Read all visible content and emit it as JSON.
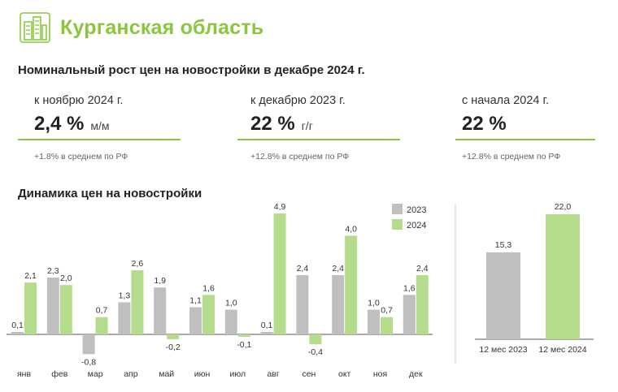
{
  "header": {
    "region": "Курганская область",
    "logo_icon": "buildings-icon"
  },
  "subtitle": "Номинальный рост цен на новостройки в декабре 2024 г.",
  "kpis": [
    {
      "label": "к ноябрю 2024 г.",
      "value": "2,4 %",
      "unit": "м/м",
      "note": "+1.8% в среднем по РФ"
    },
    {
      "label": "к декабрю 2023 г.",
      "value": "22 %",
      "unit": "г/г",
      "note": "+12.8% в среднем по РФ"
    },
    {
      "label": "с начала 2024 г.",
      "value": "22 %",
      "unit": "",
      "note": "+12.8% в среднем по РФ"
    }
  ],
  "section_title": "Динамика цен на новостройки",
  "colors": {
    "accent": "#8cc63f",
    "s2023": "#bfbfbf",
    "s2024": "#b5dc8c"
  },
  "chart_data": [
    {
      "type": "bar",
      "title": "",
      "categories": [
        "янв",
        "фев",
        "мар",
        "апр",
        "май",
        "июн",
        "июл",
        "авг",
        "сен",
        "окт",
        "ноя",
        "дек"
      ],
      "series": [
        {
          "name": "2023",
          "values": [
            0.1,
            2.3,
            -0.8,
            1.3,
            1.9,
            1.1,
            1.0,
            0.1,
            2.4,
            2.4,
            1.0,
            1.6
          ],
          "labels": [
            "0,1",
            "2,3",
            "-0,8",
            "1,3",
            "1,9",
            "1,1",
            "1,0",
            "0,1",
            "2,4",
            "2,4",
            "1,0",
            "1,6"
          ]
        },
        {
          "name": "2024",
          "values": [
            2.1,
            2.0,
            0.7,
            2.6,
            -0.2,
            1.6,
            -0.1,
            4.9,
            -0.4,
            4.0,
            0.7,
            2.4
          ],
          "labels": [
            "2,1",
            "2,0",
            "0,7",
            "2,6",
            "-0,2",
            "1,6",
            "-0,1",
            "4,9",
            "-0,4",
            "4,0",
            "0,7",
            "2,4"
          ]
        }
      ],
      "legend_position": "top-right",
      "ylim": [
        -1,
        5
      ],
      "grid": false
    },
    {
      "type": "bar",
      "title": "",
      "categories": [
        "12 мес 2023",
        "12 мес 2024"
      ],
      "values": [
        15.3,
        22.0
      ],
      "labels": [
        "15,3",
        "22,0"
      ],
      "ylim": [
        0,
        22
      ],
      "grid": false
    }
  ]
}
